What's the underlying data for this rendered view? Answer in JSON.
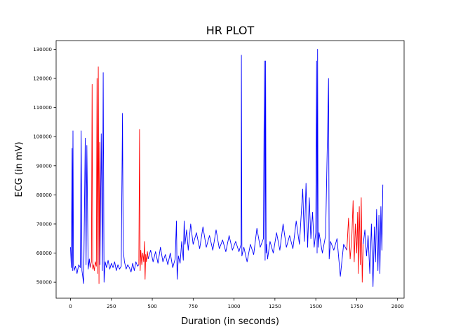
{
  "chart_data": {
    "type": "line",
    "title": "HR PLOT",
    "xlabel": "Duration (in seconds)",
    "ylabel": "ECG (in mV)",
    "xlim": [
      -88,
      2040
    ],
    "ylim": [
      44500,
      133000
    ],
    "xticks": [
      0,
      250,
      500,
      750,
      1000,
      1250,
      1500,
      1750,
      2000
    ],
    "yticks": [
      50000,
      60000,
      70000,
      80000,
      90000,
      100000,
      110000,
      120000,
      130000
    ],
    "grid": false,
    "colors": {
      "normal": "#0000ff",
      "abnormal": "#ff0000",
      "axes": "#000000"
    },
    "series": [
      {
        "color": "#0000ff",
        "x": [
          0,
          5,
          10,
          12,
          15,
          18,
          22,
          30,
          40,
          50,
          60,
          65,
          70,
          80,
          90,
          95,
          100,
          108,
          115,
          120
        ],
        "y": [
          62000,
          55000,
          96000,
          54000,
          102000,
          56000,
          54000,
          55500,
          53000,
          56000,
          55000,
          102000,
          54000,
          49500,
          99500,
          56000,
          97000,
          54500,
          58000,
          55000
        ]
      },
      {
        "color": "#ff0000",
        "x": [
          120,
          128,
          132,
          136,
          140,
          146,
          152,
          158,
          162,
          166,
          170,
          174,
          178,
          180
        ],
        "y": [
          55000,
          57000,
          118000,
          54500,
          56000,
          54000,
          57000,
          55500,
          120000,
          53000,
          124000,
          49500,
          98000,
          56000
        ]
      },
      {
        "color": "#0000ff",
        "x": [
          180,
          188,
          195,
          200,
          205,
          212,
          220,
          230,
          240,
          250,
          260,
          270,
          280,
          290,
          300,
          310,
          318,
          322,
          330,
          340,
          350,
          360,
          370,
          380,
          390,
          400,
          410,
          418
        ],
        "y": [
          56000,
          101000,
          54000,
          122000,
          50000,
          57000,
          55000,
          57500,
          54500,
          56500,
          55000,
          57000,
          54000,
          56000,
          54500,
          55500,
          108000,
          61000,
          57000,
          54500,
          56000,
          55000,
          53500,
          56500,
          54000,
          57000,
          55500,
          56000
        ]
      },
      {
        "color": "#ff0000",
        "x": [
          418,
          422,
          426,
          430,
          436,
          442,
          448,
          452,
          456,
          460,
          464,
          470,
          475
        ],
        "y": [
          56000,
          102500,
          54000,
          61000,
          56000,
          60000,
          57000,
          64000,
          51000,
          59500,
          57000,
          60500,
          58000
        ]
      },
      {
        "color": "#0000ff",
        "x": [
          475,
          490,
          505,
          520,
          535,
          550,
          565,
          580,
          595,
          610,
          625,
          640,
          648,
          652,
          660,
          670,
          680,
          690,
          695,
          700,
          710,
          720,
          735,
          750,
          770,
          790,
          810,
          830,
          850,
          870,
          890,
          910,
          930,
          950,
          970,
          990,
          1010,
          1030,
          1043,
          1045,
          1048,
          1060,
          1080,
          1100,
          1120,
          1140,
          1160,
          1180,
          1186,
          1190,
          1193,
          1196,
          1199,
          1205,
          1220,
          1240,
          1260,
          1280,
          1300,
          1320,
          1340,
          1360,
          1380,
          1400,
          1420,
          1430,
          1440,
          1450,
          1460,
          1470,
          1480,
          1490,
          1500,
          1505,
          1508,
          1511,
          1514,
          1520,
          1540,
          1560,
          1578,
          1582,
          1590,
          1610,
          1630,
          1650,
          1670,
          1690
        ],
        "y": [
          58000,
          61000,
          57000,
          60500,
          56500,
          62000,
          57000,
          59500,
          56000,
          60000,
          55000,
          58000,
          71000,
          51000,
          59000,
          56500,
          64000,
          57500,
          71000,
          63000,
          68000,
          61000,
          70000,
          63000,
          67000,
          61500,
          69000,
          62000,
          66000,
          61000,
          68000,
          61500,
          64500,
          60500,
          66000,
          61000,
          64000,
          60500,
          63000,
          128000,
          59000,
          62000,
          57000,
          63000,
          59500,
          68500,
          62000,
          65000,
          126000,
          57500,
          126000,
          60000,
          63000,
          58000,
          64000,
          60000,
          67000,
          61000,
          70000,
          62000,
          66000,
          61500,
          71000,
          63000,
          82000,
          64000,
          84000,
          62000,
          79000,
          65000,
          74000,
          62000,
          67000,
          126000,
          60000,
          130000,
          62000,
          67000,
          60000,
          66000,
          120000,
          58000,
          64000,
          61000,
          65000,
          52000,
          63000,
          61000
        ]
      },
      {
        "color": "#ff0000",
        "x": [
          1690,
          1700,
          1710,
          1720,
          1728,
          1735,
          1742,
          1750,
          1756,
          1760,
          1766,
          1772,
          1778,
          1784,
          1790
        ],
        "y": [
          61000,
          72000,
          58000,
          65000,
          78000,
          57000,
          70000,
          60000,
          74000,
          53000,
          76000,
          56000,
          79000,
          50000,
          63000
        ]
      },
      {
        "color": "#0000ff",
        "x": [
          1790,
          1800,
          1810,
          1820,
          1830,
          1840,
          1850,
          1858,
          1865,
          1872,
          1880,
          1886,
          1892,
          1898,
          1904,
          1910
        ],
        "y": [
          63000,
          68000,
          59000,
          66000,
          53000,
          70000,
          48500,
          69000,
          57000,
          75000,
          54000,
          73000,
          53000,
          76000,
          61000,
          83500
        ]
      }
    ]
  }
}
